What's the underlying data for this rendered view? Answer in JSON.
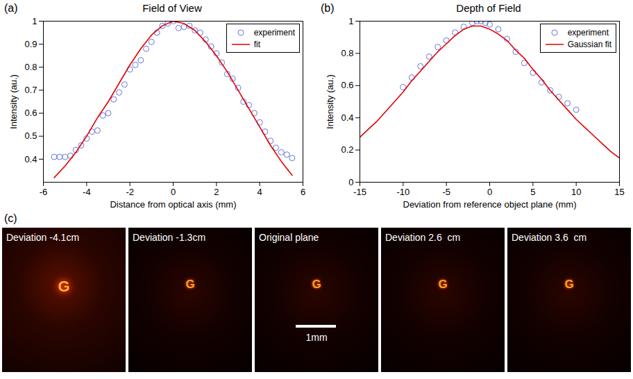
{
  "chart_data": [
    {
      "type": "scatter",
      "panel": "(a)",
      "title": "Field of View",
      "x_label": "Distance from optical axis (mm)",
      "y_label": "Intensity (au.)",
      "xlim": [
        -6,
        6
      ],
      "xticks": [
        -6,
        -4,
        -2,
        0,
        2,
        4,
        6
      ],
      "ylim": [
        0.3,
        1
      ],
      "yticks": [
        0.4,
        0.5,
        0.6,
        0.7,
        0.8,
        0.9,
        1
      ],
      "grid": false,
      "legend": "upper right",
      "series": [
        {
          "name": "experiment",
          "type": "scatter",
          "marker": "circle",
          "color": "#6677dd",
          "x": [
            -5.5,
            -5.25,
            -5.0,
            -4.75,
            -4.5,
            -4.25,
            -4.0,
            -3.75,
            -3.5,
            -3.25,
            -3.0,
            -2.75,
            -2.5,
            -2.25,
            -2.0,
            -1.75,
            -1.5,
            -1.25,
            -1.0,
            -0.75,
            -0.5,
            -0.25,
            0.0,
            0.25,
            0.5,
            0.75,
            1.0,
            1.25,
            1.5,
            1.75,
            2.0,
            2.25,
            2.5,
            2.75,
            3.0,
            3.25,
            3.5,
            3.75,
            4.0,
            4.25,
            4.5,
            4.75,
            5.0,
            5.25,
            5.5
          ],
          "values": [
            0.41,
            0.41,
            0.41,
            0.415,
            0.44,
            0.46,
            0.49,
            0.52,
            0.525,
            0.59,
            0.6,
            0.66,
            0.69,
            0.725,
            0.79,
            0.81,
            0.83,
            0.88,
            0.91,
            0.95,
            0.98,
            0.99,
            1.0,
            0.97,
            0.975,
            0.98,
            0.96,
            0.95,
            0.92,
            0.89,
            0.86,
            0.82,
            0.77,
            0.75,
            0.71,
            0.65,
            0.635,
            0.6,
            0.56,
            0.52,
            0.48,
            0.45,
            0.43,
            0.42,
            0.405
          ]
        },
        {
          "name": "fit",
          "type": "line",
          "color": "#e00000",
          "x": [
            -5.5,
            -5.0,
            -4.5,
            -4.0,
            -3.5,
            -3.0,
            -2.5,
            -2.0,
            -1.5,
            -1.0,
            -0.5,
            0.0,
            0.5,
            1.0,
            1.5,
            2.0,
            2.5,
            3.0,
            3.5,
            4.0,
            4.5,
            5.0,
            5.5
          ],
          "values": [
            0.32,
            0.37,
            0.43,
            0.5,
            0.58,
            0.65,
            0.73,
            0.81,
            0.88,
            0.94,
            0.98,
            1.0,
            0.99,
            0.96,
            0.91,
            0.85,
            0.78,
            0.7,
            0.62,
            0.54,
            0.46,
            0.39,
            0.33
          ]
        }
      ]
    },
    {
      "type": "scatter",
      "panel": "(b)",
      "title": "Depth of Field",
      "x_label": "Deviation from reference object plane (mm)",
      "y_label": "Intensity (au.)",
      "xlim": [
        -15,
        15
      ],
      "xticks": [
        -15,
        -10,
        -5,
        0,
        5,
        10,
        15
      ],
      "ylim": [
        0,
        1
      ],
      "yticks": [
        0,
        0.2,
        0.4,
        0.6,
        0.8,
        1
      ],
      "grid": false,
      "legend": "upper right",
      "series": [
        {
          "name": "experiment",
          "type": "scatter",
          "marker": "circle",
          "color": "#6677dd",
          "x": [
            -10,
            -9,
            -8,
            -7,
            -6,
            -5,
            -4,
            -3,
            -2,
            -1.5,
            -1,
            -0.5,
            0,
            1,
            2,
            3,
            4,
            5,
            6,
            7,
            8,
            9,
            10
          ],
          "values": [
            0.59,
            0.65,
            0.72,
            0.78,
            0.84,
            0.88,
            0.93,
            0.965,
            0.99,
            1.0,
            1.0,
            0.99,
            0.98,
            0.95,
            0.89,
            0.81,
            0.74,
            0.68,
            0.62,
            0.57,
            0.53,
            0.49,
            0.45
          ]
        },
        {
          "name": "Gaussian fit",
          "type": "line",
          "color": "#e00000",
          "x": [
            -15,
            -14,
            -13,
            -12,
            -11,
            -10,
            -9,
            -8,
            -7,
            -6,
            -5,
            -4,
            -3,
            -2,
            -1,
            0,
            1,
            2,
            3,
            4,
            5,
            6,
            7,
            8,
            9,
            10,
            11,
            12,
            13,
            14,
            15
          ],
          "values": [
            0.28,
            0.33,
            0.38,
            0.44,
            0.5,
            0.56,
            0.63,
            0.69,
            0.75,
            0.81,
            0.86,
            0.91,
            0.95,
            0.97,
            0.97,
            0.95,
            0.92,
            0.88,
            0.82,
            0.77,
            0.7,
            0.64,
            0.57,
            0.51,
            0.45,
            0.39,
            0.34,
            0.29,
            0.24,
            0.19,
            0.15
          ]
        }
      ]
    }
  ],
  "image_panel": {
    "panel": "(c)",
    "object": "G",
    "scale_bar": "1mm",
    "images": [
      {
        "label": "Deviation -4.1cm"
      },
      {
        "label": "Deviation -1.3cm"
      },
      {
        "label": "Original plane"
      },
      {
        "label": "Deviation 2.6  cm"
      },
      {
        "label": "Deviation 3.6  cm"
      }
    ]
  }
}
